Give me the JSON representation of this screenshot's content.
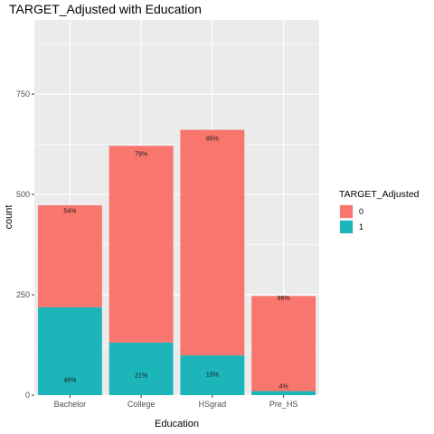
{
  "chart_data": {
    "type": "bar",
    "stacked": true,
    "title": "TARGET_Adjusted with Education",
    "xlabel": "Education",
    "ylabel": "count",
    "categories": [
      "Bachelor",
      "College",
      "HSgrad",
      "Pre_HS"
    ],
    "series": [
      {
        "name": "0",
        "color": "#F8766D",
        "values": [
          254,
          490,
          562,
          237
        ],
        "labels": [
          "54%",
          "79%",
          "85%",
          "96%"
        ]
      },
      {
        "name": "1",
        "color": "#1CB5BA",
        "values": [
          219,
          131,
          99,
          10
        ],
        "labels": [
          "46%",
          "21%",
          "15%",
          "4%"
        ]
      }
    ],
    "ylim": [
      0,
      935
    ],
    "yticks": [
      0,
      250,
      500,
      750
    ],
    "ytick_labels": [
      "0",
      "250",
      "500",
      "750"
    ],
    "grid": true,
    "legend": {
      "title": "TARGET_Adjusted",
      "position": "right"
    },
    "panel_color": "#EBEBEB",
    "grid_color": "#FFFFFF"
  }
}
